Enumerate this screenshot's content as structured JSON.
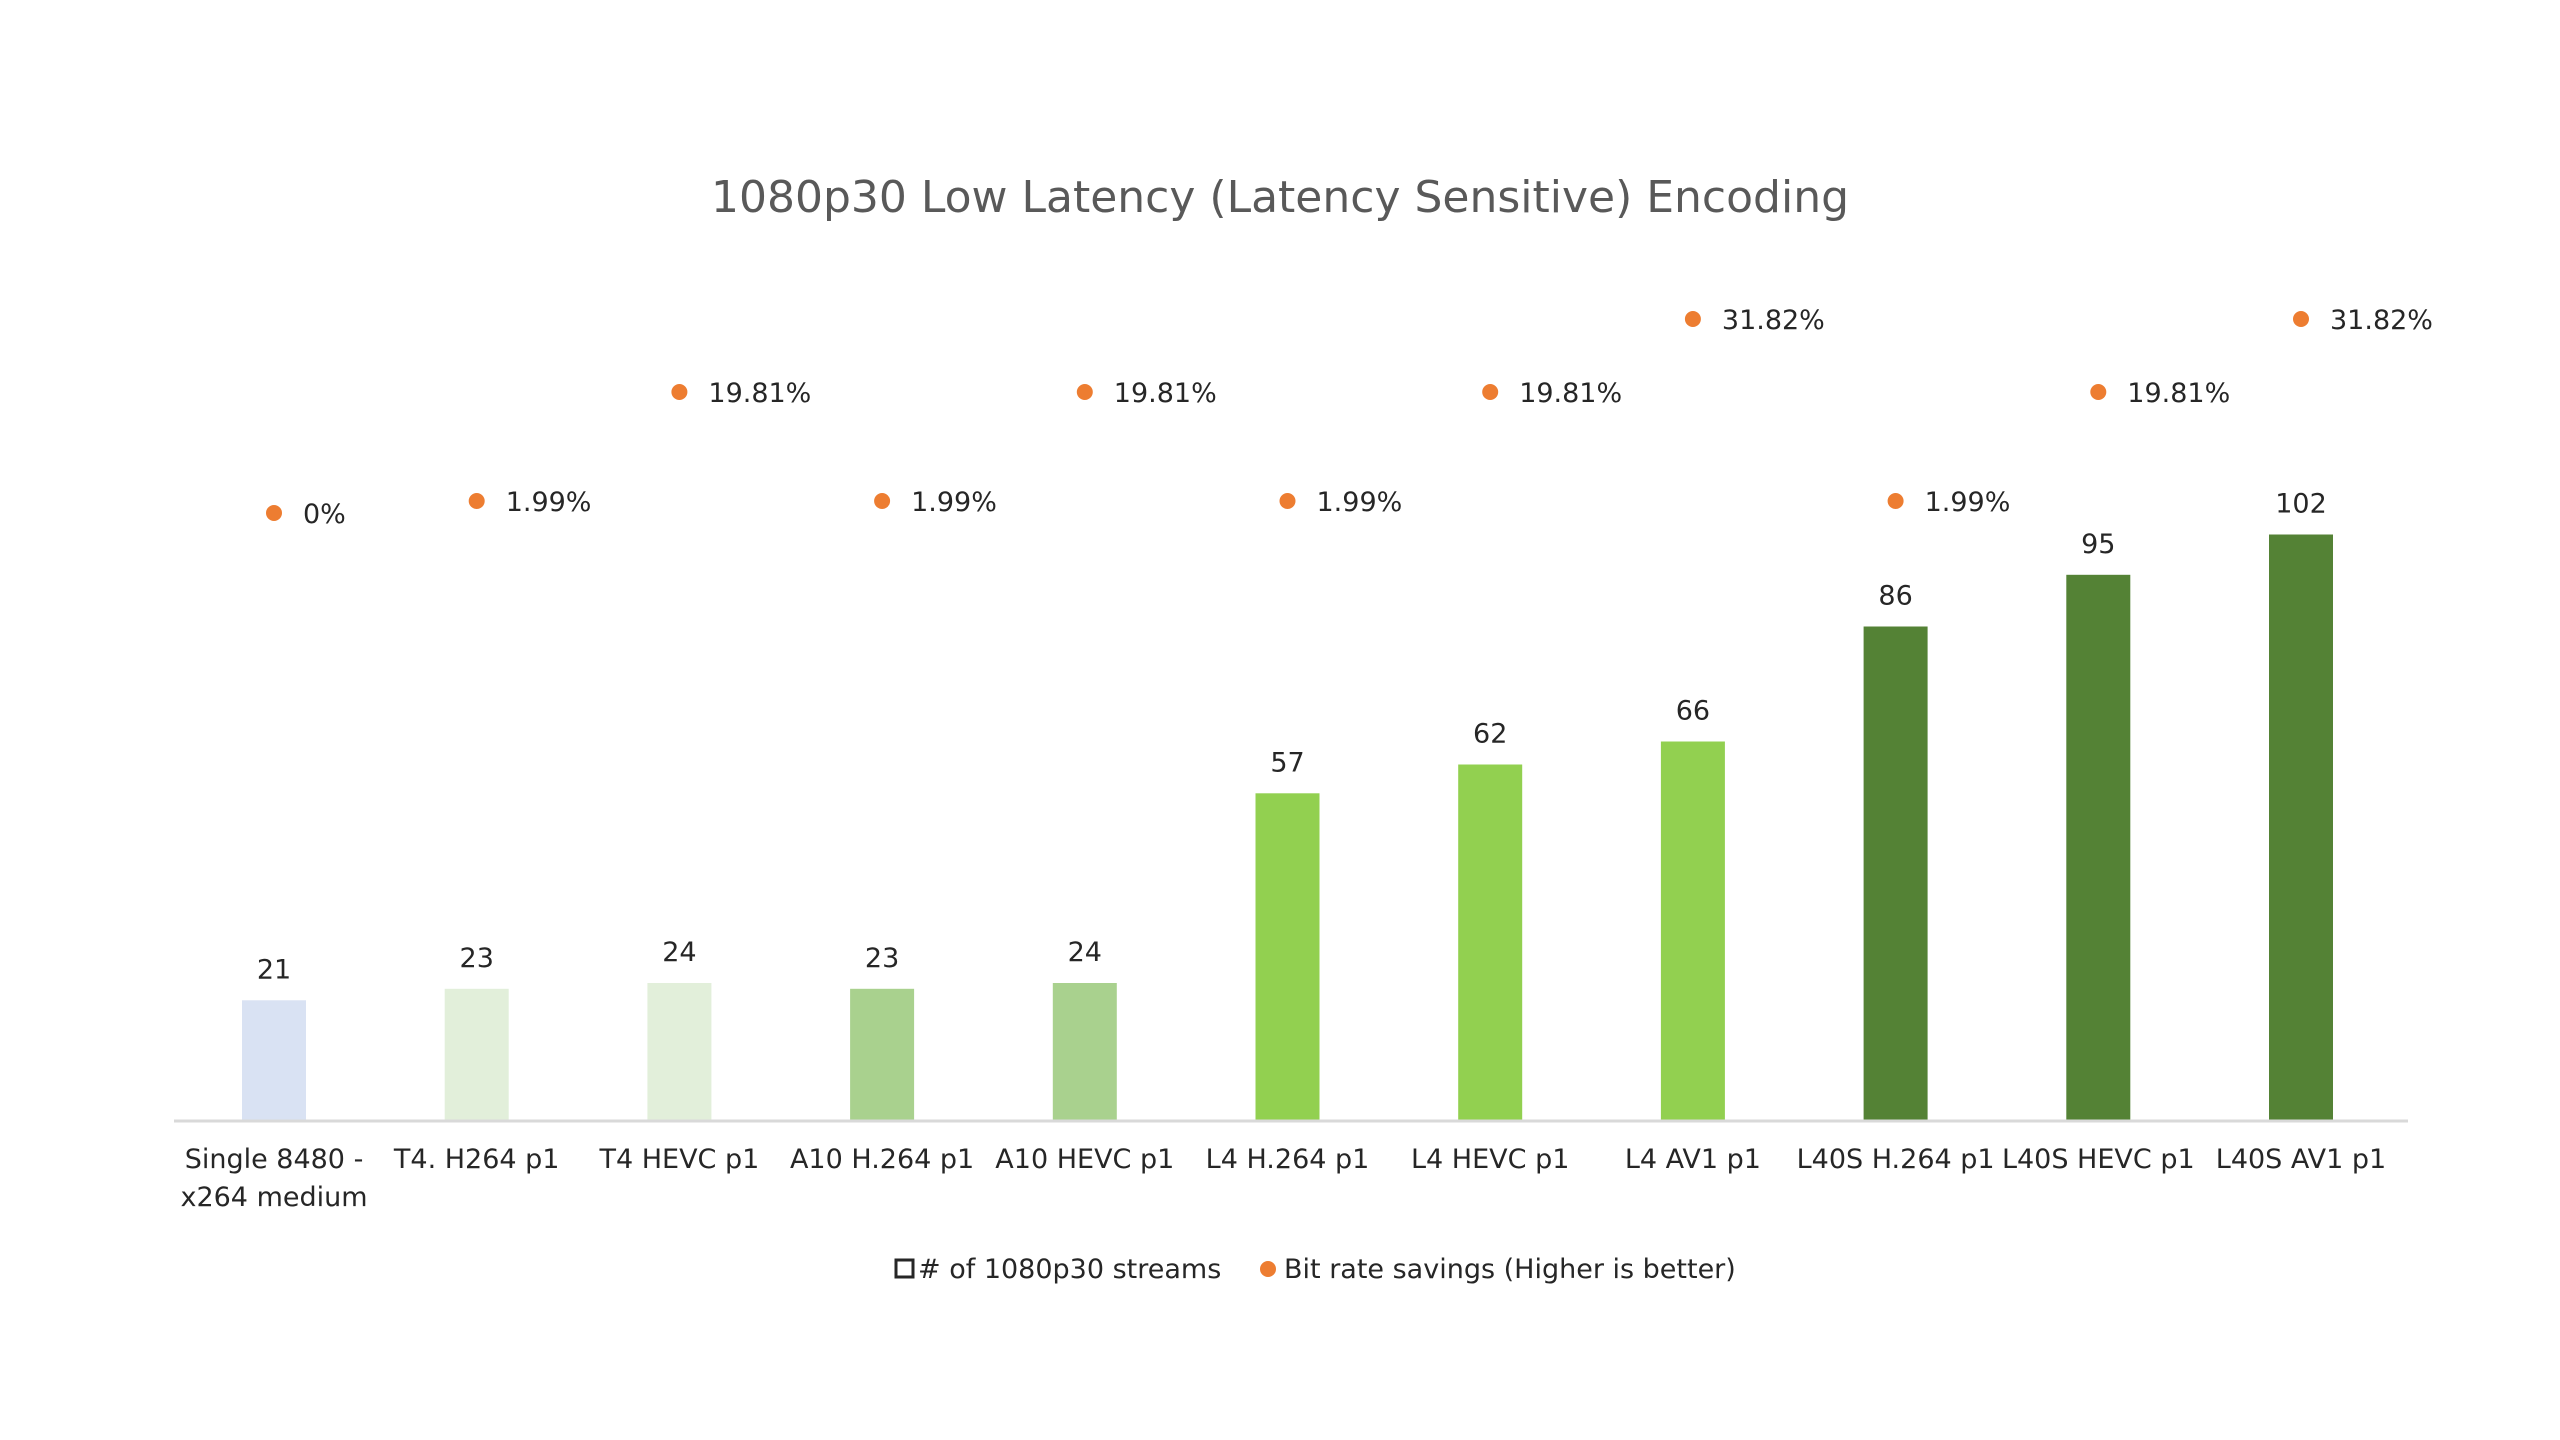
{
  "chart_data": {
    "type": "bar",
    "title": "1080p30 Low Latency (Latency Sensitive) Encoding",
    "xlabel": "",
    "ylabel": "",
    "ylim": [
      0,
      110
    ],
    "grid": false,
    "legend_position": "bottom",
    "categories": [
      [
        "Single 8480 -",
        "x264 medium"
      ],
      [
        "T4. H264 p1"
      ],
      [
        "T4 HEVC p1"
      ],
      [
        "A10 H.264 p1"
      ],
      [
        "A10 HEVC p1"
      ],
      [
        "L4 H.264 p1"
      ],
      [
        "L4 HEVC p1"
      ],
      [
        "L4 AV1 p1"
      ],
      [
        "L40S H.264 p1"
      ],
      [
        "L40S HEVC p1"
      ],
      [
        "L40S AV1 p1"
      ]
    ],
    "series": [
      {
        "name": "# of 1080p30 streams",
        "type": "bar",
        "values": [
          21,
          23,
          24,
          23,
          24,
          57,
          62,
          66,
          86,
          95,
          102
        ],
        "labels": [
          "21",
          "23",
          "24",
          "23",
          "24",
          "57",
          "62",
          "66",
          "86",
          "95",
          "102"
        ],
        "colors": [
          "#d9e2f3",
          "#e2efda",
          "#e2efda",
          "#a9d18e",
          "#a9d18e",
          "#92d050",
          "#92d050",
          "#92d050",
          "#548235",
          "#548235",
          "#548235"
        ]
      },
      {
        "name": "Bit rate savings (Higher is better)",
        "type": "scatter",
        "values": [
          0,
          1.99,
          19.81,
          1.99,
          19.81,
          1.99,
          19.81,
          31.82,
          1.99,
          19.81,
          31.82
        ],
        "labels": [
          "0%",
          "1.99%",
          "19.81%",
          "1.99%",
          "19.81%",
          "1.99%",
          "19.81%",
          "31.82%",
          "1.99%",
          "19.81%",
          "31.82%"
        ],
        "color": "#ed7d31"
      }
    ],
    "legend": [
      {
        "label": "# of 1080p30 streams",
        "marker": "square-outline"
      },
      {
        "label": "Bit rate savings (Higher is better)",
        "marker": "circle",
        "color": "#ed7d31"
      }
    ]
  }
}
